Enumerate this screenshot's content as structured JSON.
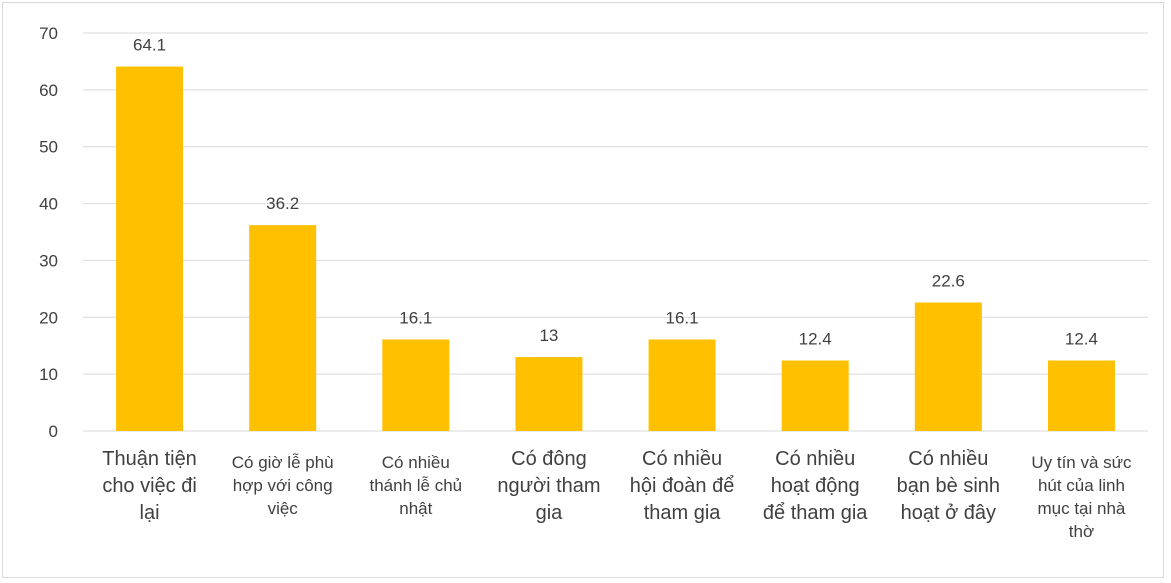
{
  "chart_data": {
    "type": "bar",
    "categories": [
      "Thuận tiện cho việc đi lại",
      "Có giờ lễ phù hợp với công việc",
      "Có nhiều thánh lễ chủ nhật",
      "Có đông người tham gia",
      "Có nhiều hội đoàn để tham gia",
      "Có nhiều hoạt động để tham gia",
      "Có nhiều bạn bè sinh hoạt ở đây",
      "Uy tín và sức hút của linh mục tại nhà thờ"
    ],
    "category_lines": [
      [
        "Thuận tiện",
        "cho việc đi",
        "lại"
      ],
      [
        "Có giờ lễ phù",
        "hợp với công",
        "việc"
      ],
      [
        "Có nhiều",
        "thánh lễ chủ",
        "nhật"
      ],
      [
        "Có đông",
        "người tham",
        "gia"
      ],
      [
        "Có nhiều",
        "hội đoàn để",
        "tham gia"
      ],
      [
        "Có nhiều",
        "hoạt động",
        "để tham gia"
      ],
      [
        "Có nhiều",
        "bạn bè sinh",
        "hoạt ở đây"
      ],
      [
        "Uy tín và sức",
        "hút của linh",
        "mục tại nhà",
        "thờ"
      ]
    ],
    "values": [
      64.1,
      36.2,
      16.1,
      13,
      16.1,
      12.4,
      22.6,
      12.4
    ],
    "value_labels": [
      "64.1",
      "36.2",
      "16.1",
      "13",
      "16.1",
      "12.4",
      "22.6",
      "12.4"
    ],
    "ylim": [
      0,
      70
    ],
    "yticks": [
      0,
      10,
      20,
      30,
      40,
      50,
      60,
      70
    ],
    "grid": true,
    "bar_color": "#FFC000",
    "grid_color": "#d9d9d9",
    "text_color": "#404040"
  }
}
